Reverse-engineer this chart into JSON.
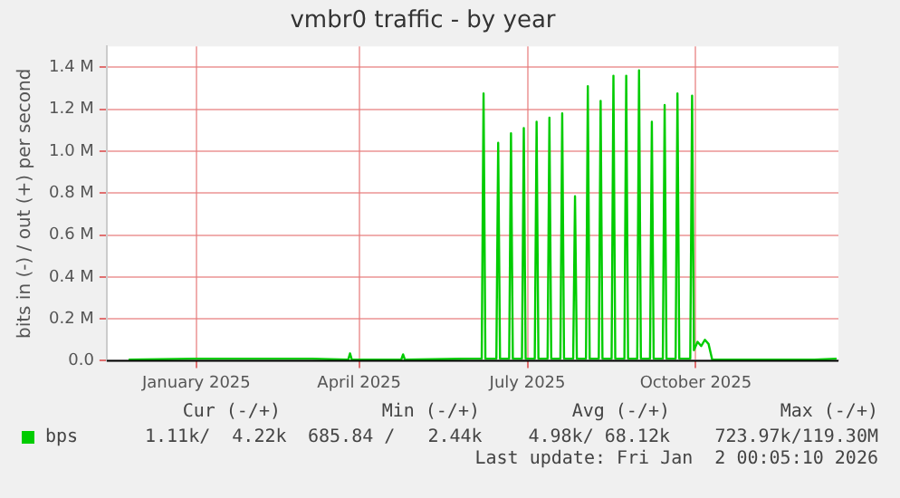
{
  "chart_data": {
    "type": "line",
    "title": "vmbr0 traffic - by year",
    "ylabel": "bits in (-) / out (+) per second",
    "x": [
      "2024-12-10",
      "2025-01-15",
      "2025-02-15",
      "2025-03-20",
      "2025-04-09",
      "2025-04-10",
      "2025-04-11",
      "2025-05-08",
      "2025-05-09",
      "2025-05-10",
      "2025-06-15",
      "2025-06-21",
      "2025-06-22",
      "2025-06-23",
      "2025-06-29",
      "2025-06-30",
      "2025-07-01",
      "2025-07-06",
      "2025-07-07",
      "2025-07-08",
      "2025-07-13",
      "2025-07-14",
      "2025-07-15",
      "2025-07-20",
      "2025-07-21",
      "2025-07-22",
      "2025-07-27",
      "2025-07-28",
      "2025-07-29",
      "2025-08-03",
      "2025-08-04",
      "2025-08-05",
      "2025-08-10",
      "2025-08-11",
      "2025-08-12",
      "2025-08-17",
      "2025-08-18",
      "2025-08-19",
      "2025-08-24",
      "2025-08-25",
      "2025-08-26",
      "2025-08-31",
      "2025-09-01",
      "2025-09-02",
      "2025-09-07",
      "2025-09-08",
      "2025-09-09",
      "2025-09-14",
      "2025-09-15",
      "2025-09-16",
      "2025-09-21",
      "2025-09-22",
      "2025-09-23",
      "2025-09-28",
      "2025-09-29",
      "2025-09-30",
      "2025-10-05",
      "2025-10-06",
      "2025-10-07",
      "2025-10-13",
      "2025-10-14",
      "2025-10-15",
      "2025-10-17",
      "2025-10-19",
      "2025-10-21",
      "2025-10-23",
      "2025-10-25",
      "2025-11-20",
      "2025-12-20",
      "2026-01-01"
    ],
    "series": [
      {
        "name": "bps",
        "color": "#00cc00",
        "values": [
          0.005,
          0.01,
          0.01,
          0.01,
          0.005,
          0.035,
          0.005,
          0.005,
          0.03,
          0.005,
          0.01,
          0.01,
          1.275,
          0.01,
          0.01,
          1.04,
          0.01,
          0.01,
          1.085,
          0.01,
          0.01,
          1.11,
          0.01,
          0.01,
          1.14,
          0.01,
          0.01,
          1.16,
          0.01,
          0.01,
          1.18,
          0.01,
          0.01,
          0.785,
          0.01,
          0.01,
          1.31,
          0.01,
          0.01,
          1.24,
          0.01,
          0.01,
          1.36,
          0.01,
          0.01,
          1.36,
          0.01,
          0.01,
          1.385,
          0.01,
          0.01,
          1.14,
          0.01,
          0.01,
          1.22,
          0.01,
          0.01,
          1.275,
          0.01,
          0.01,
          1.265,
          0.05,
          0.09,
          0.07,
          0.1,
          0.08,
          0.005,
          0.005,
          0.005,
          0.01
        ]
      }
    ],
    "xlim": [
      "2024-11-28",
      "2026-01-02"
    ],
    "xticks": [
      {
        "value": "2025-01-16",
        "label": "January 2025"
      },
      {
        "value": "2025-04-15",
        "label": "April 2025"
      },
      {
        "value": "2025-07-16",
        "label": "July 2025"
      },
      {
        "value": "2025-10-16",
        "label": "October 2025"
      }
    ],
    "ylim": [
      0,
      1.5
    ],
    "yticks": [
      {
        "value": 0,
        "label": "0.0"
      },
      {
        "value": 0.2,
        "label": "0.2 M"
      },
      {
        "value": 0.4,
        "label": "0.4 M"
      },
      {
        "value": 0.6,
        "label": "0.6 M"
      },
      {
        "value": 0.8,
        "label": "0.8 M"
      },
      {
        "value": 1.0,
        "label": "1.0 M"
      },
      {
        "value": 1.2,
        "label": "1.2 M"
      },
      {
        "value": 1.4,
        "label": "1.4 M"
      }
    ],
    "grid": true,
    "legend": "bottom left",
    "marker": "none",
    "line_style": "solid",
    "annotations": [
      "Cur (-/+)",
      "Min (-/+)",
      "Avg (-/+)",
      "Max (-/+)",
      "1.11k/  4.22k",
      "685.84 /   2.44k",
      "4.98k/ 68.12k",
      "723.97k/119.30M",
      "Last update: Fri Jan  2 00:05:10 2026"
    ]
  }
}
